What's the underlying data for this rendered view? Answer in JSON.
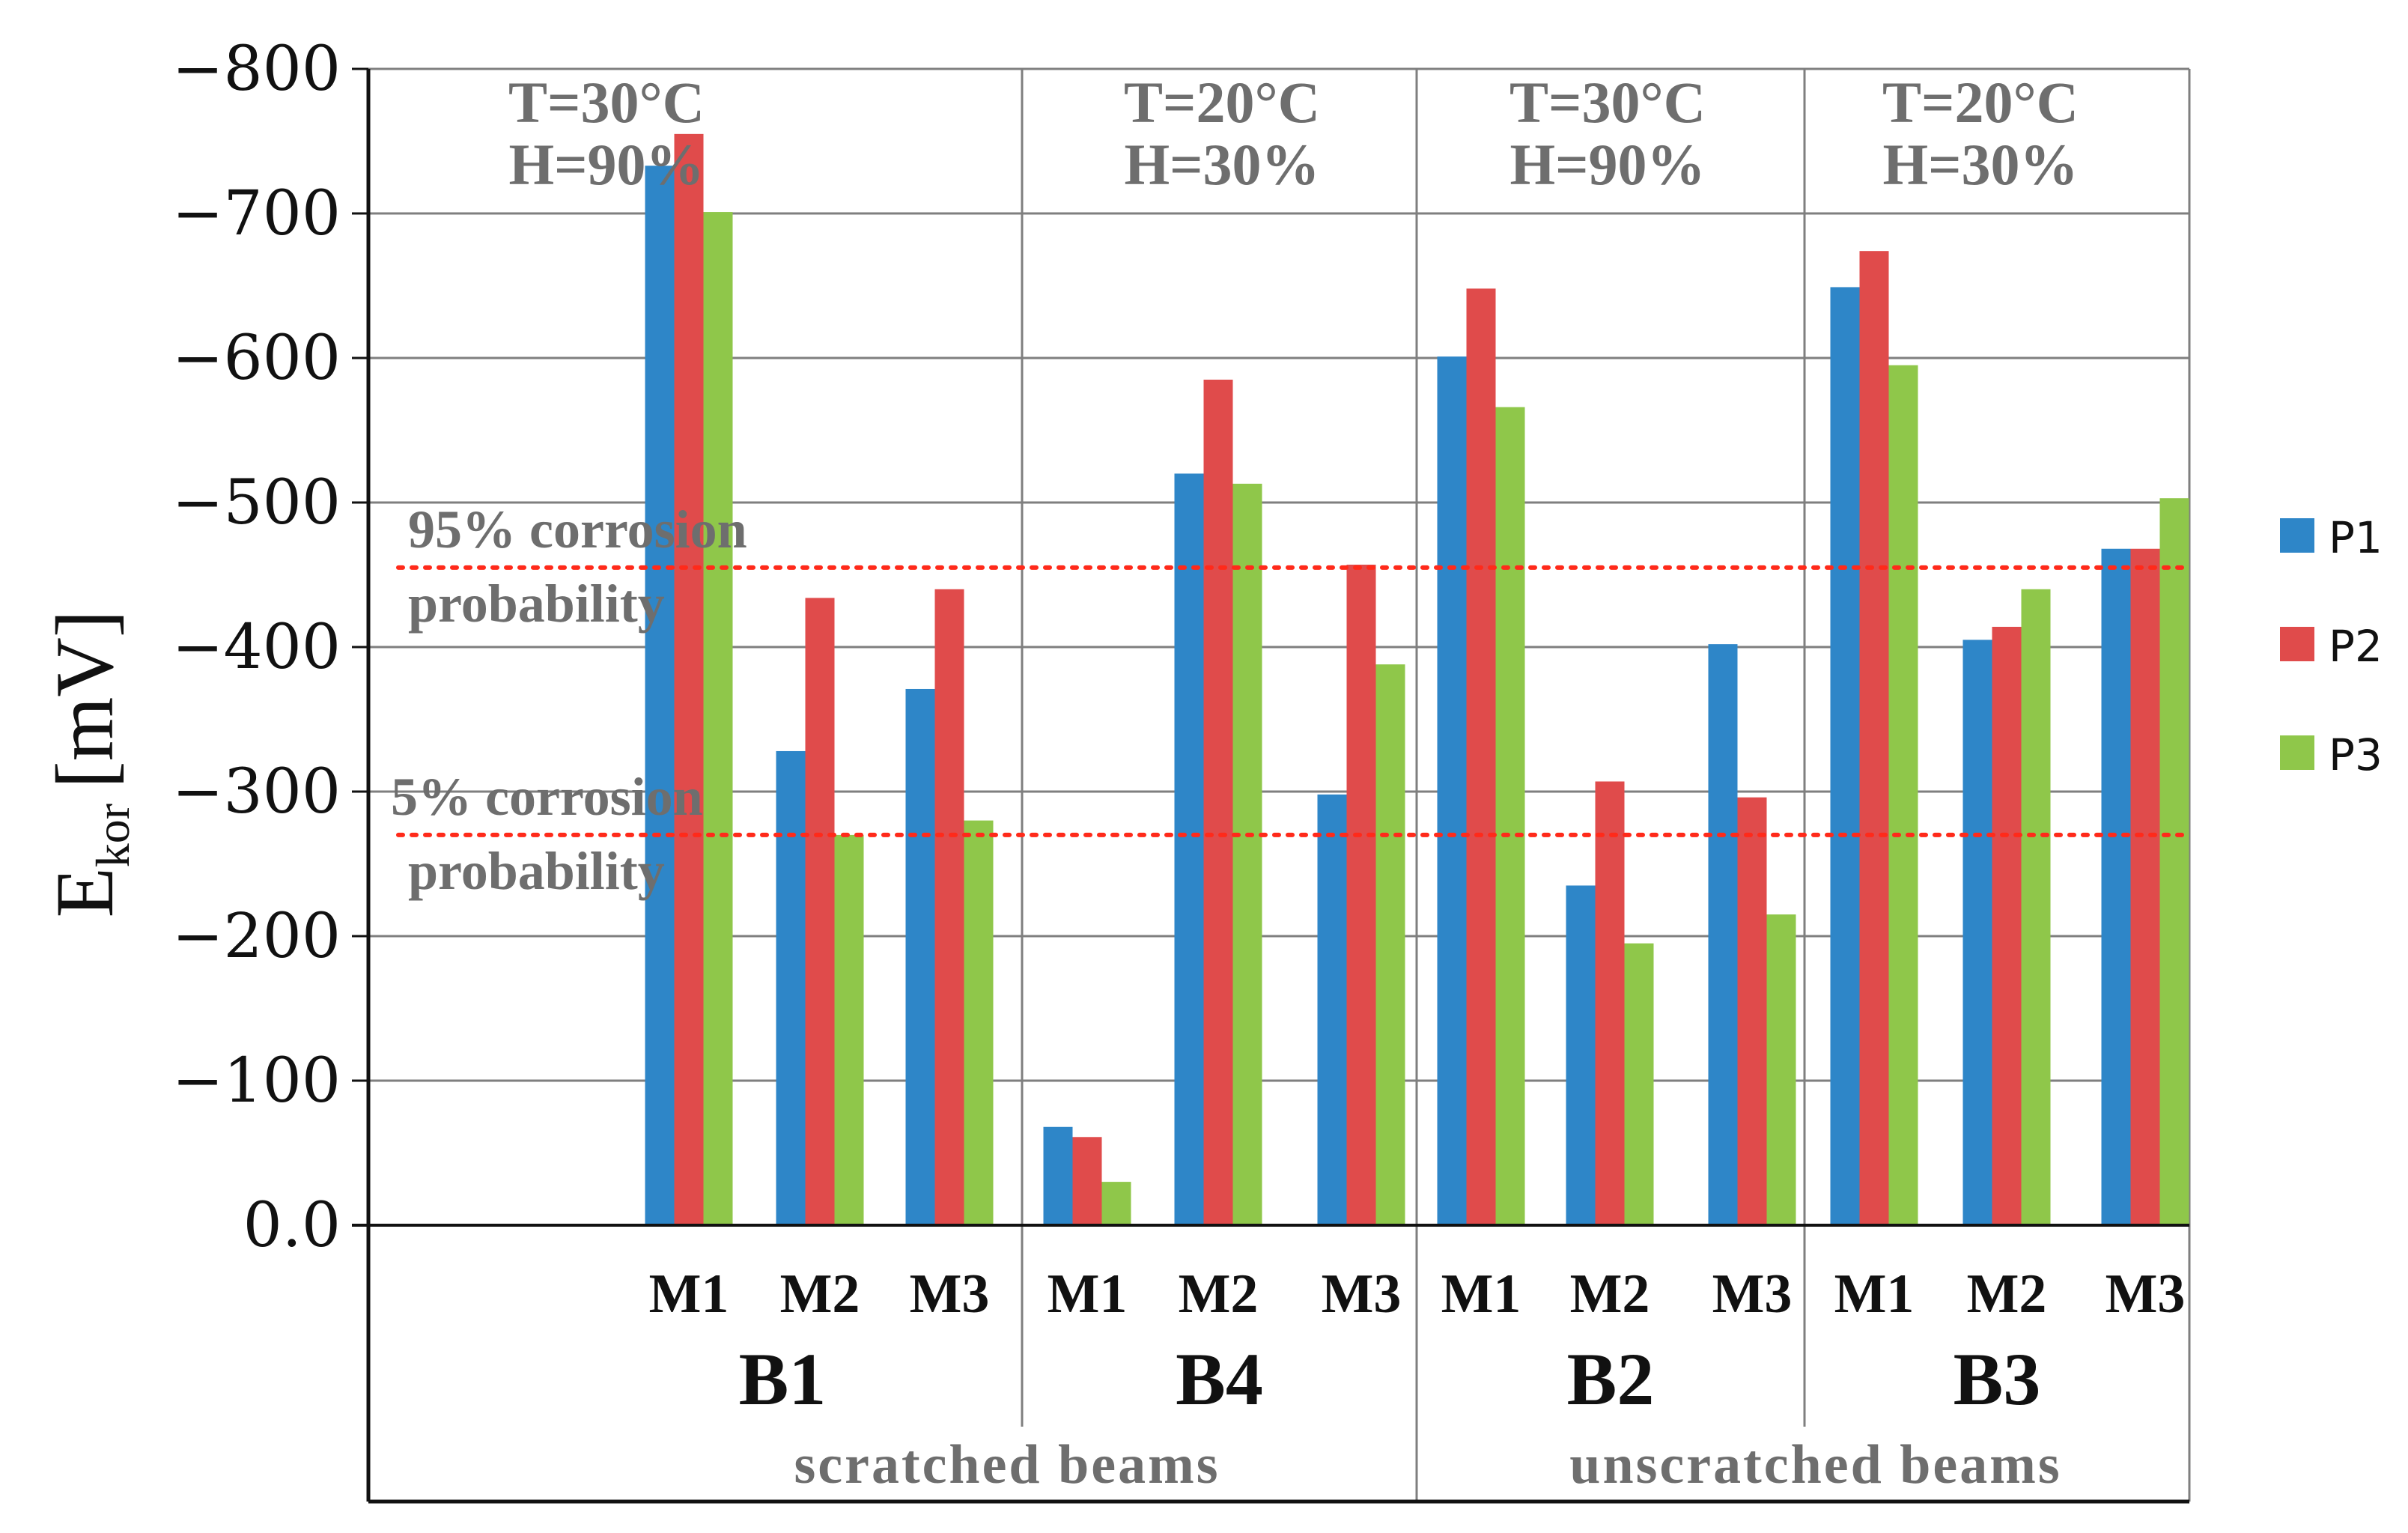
{
  "chart_data": {
    "type": "bar",
    "y_axis": {
      "label_main": "E",
      "label_sub": "kor",
      "label_unit": "[mV]",
      "ylim": [
        0,
        -800
      ],
      "inverted": true,
      "ticks": [
        {
          "value": 0,
          "label": "0.0"
        },
        {
          "value": -100,
          "label": "−100"
        },
        {
          "value": -200,
          "label": "−200"
        },
        {
          "value": -300,
          "label": "−300"
        },
        {
          "value": -400,
          "label": "−400"
        },
        {
          "value": -500,
          "label": "−500"
        },
        {
          "value": -600,
          "label": "−600"
        },
        {
          "value": -700,
          "label": "−700"
        },
        {
          "value": -800,
          "label": "−800"
        }
      ]
    },
    "series": [
      {
        "name": "P1",
        "color": "#2e86c8"
      },
      {
        "name": "P2",
        "color": "#e04b4b"
      },
      {
        "name": "P3",
        "color": "#8fc74a"
      }
    ],
    "beams": [
      {
        "label": "B1",
        "condition": [
          "T=30°C",
          "H=90%"
        ],
        "measurements": [
          {
            "label": "M1",
            "values": [
              -733,
              -755,
              -701
            ]
          },
          {
            "label": "M2",
            "values": [
              -328,
              -434,
              -270
            ]
          },
          {
            "label": "M3",
            "values": [
              -371,
              -440,
              -280
            ]
          }
        ]
      },
      {
        "label": "B4",
        "condition": [
          "T=20°C",
          "H=30%"
        ],
        "measurements": [
          {
            "label": "M1",
            "values": [
              -68,
              -61,
              -30
            ]
          },
          {
            "label": "M2",
            "values": [
              -520,
              -585,
              -513
            ]
          },
          {
            "label": "M3",
            "values": [
              -298,
              -457,
              -388
            ]
          }
        ]
      },
      {
        "label": "B2",
        "condition": [
          "T=30°C",
          "H=90%"
        ],
        "measurements": [
          {
            "label": "M1",
            "values": [
              -601,
              -648,
              -566
            ]
          },
          {
            "label": "M2",
            "values": [
              -235,
              -307,
              -195
            ]
          },
          {
            "label": "M3",
            "values": [
              -402,
              -296,
              -215
            ]
          }
        ]
      },
      {
        "label": "B3",
        "condition": [
          "T=20°C",
          "H=30%"
        ],
        "measurements": [
          {
            "label": "M1",
            "values": [
              -649,
              -674,
              -595
            ]
          },
          {
            "label": "M2",
            "values": [
              -405,
              -414,
              -440
            ]
          },
          {
            "label": "M3",
            "values": [
              -468,
              -468,
              -503
            ]
          }
        ]
      }
    ],
    "groups": [
      {
        "label": "scratched beams",
        "beams": [
          "B1",
          "B4"
        ]
      },
      {
        "label": "unscratched beams",
        "beams": [
          "B2",
          "B3"
        ]
      }
    ],
    "thresholds": [
      {
        "value": -455,
        "lines": [
          "95% corrosion",
          "probability"
        ],
        "color": "#ff2a1a"
      },
      {
        "value": -270,
        "lines": [
          "5% corrosion",
          "probability"
        ],
        "color": "#ff2a1a"
      }
    ],
    "legend_position": "right",
    "grid": true
  }
}
